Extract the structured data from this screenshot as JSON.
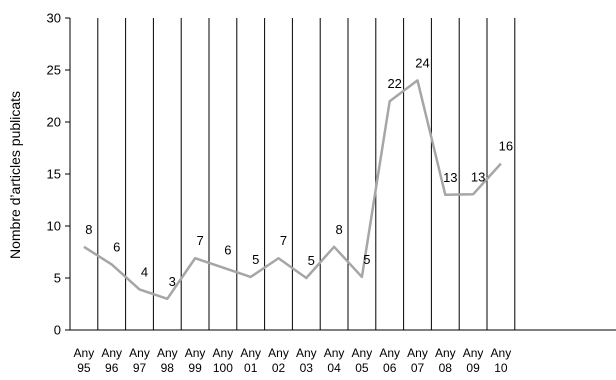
{
  "chart_data": {
    "type": "line",
    "title": "",
    "xlabel": "",
    "ylabel": "Nombre d’articles publicats",
    "ylim": [
      0,
      30
    ],
    "yticks": [
      0,
      5,
      10,
      15,
      20,
      25,
      30
    ],
    "grid": "vertical",
    "legend": "none",
    "categories": [
      [
        "Any",
        "95"
      ],
      [
        "Any",
        "96"
      ],
      [
        "Any",
        "97"
      ],
      [
        "Any",
        "98"
      ],
      [
        "Any",
        "99"
      ],
      [
        "Any",
        "100"
      ],
      [
        "Any",
        "01"
      ],
      [
        "Any",
        "02"
      ],
      [
        "Any",
        "03"
      ],
      [
        "Any",
        "04"
      ],
      [
        "Any",
        "05"
      ],
      [
        "Any",
        "06"
      ],
      [
        "Any",
        "07"
      ],
      [
        "Any",
        "08"
      ],
      [
        "Any",
        "09"
      ],
      [
        "Any",
        "10"
      ]
    ],
    "series": [
      {
        "values": [
          8,
          6,
          4,
          3,
          7,
          6,
          5,
          7,
          5,
          8,
          5,
          22,
          24,
          13,
          13,
          16
        ],
        "plotted": [
          8,
          6.3,
          3.9,
          3,
          6.9,
          6,
          5.1,
          6.9,
          5,
          8,
          5.1,
          22,
          24,
          13,
          13.05,
          16
        ],
        "color": "#a6a6a6"
      }
    ]
  }
}
